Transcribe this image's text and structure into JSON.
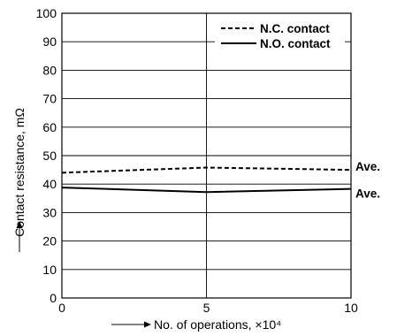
{
  "chart_data": {
    "type": "line",
    "title": "",
    "xlabel": "No. of operations, ×10⁴",
    "ylabel": "Contact resistance, mΩ",
    "xlim": [
      0,
      10
    ],
    "ylim": [
      0,
      100
    ],
    "xticks": [
      "0",
      "5",
      "10"
    ],
    "yticks": [
      "0",
      "10",
      "20",
      "30",
      "40",
      "50",
      "60",
      "70",
      "80",
      "90",
      "100"
    ],
    "grid": "horizontal every 10 units, vertical at 5",
    "legend_position": "top-right",
    "series": [
      {
        "name": "N.C. contact",
        "style": "dashed",
        "x": [
          0,
          5,
          10
        ],
        "y": [
          44,
          45.8,
          45
        ],
        "end_label": "Ave."
      },
      {
        "name": "N.O. contact",
        "style": "solid",
        "x": [
          0,
          5,
          10
        ],
        "y": [
          38.8,
          37.2,
          38.3
        ],
        "end_label": "Ave."
      }
    ]
  }
}
